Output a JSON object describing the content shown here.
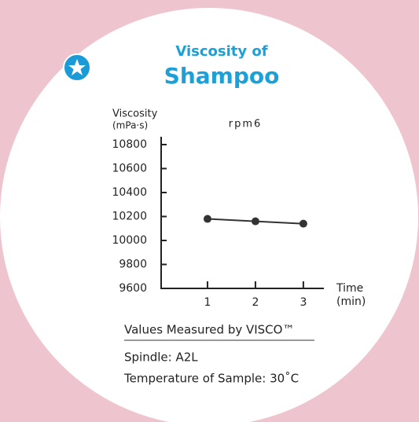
{
  "chart_data": {
    "type": "line",
    "title_lines": [
      "Viscosity of",
      "Shampoo"
    ],
    "subtitle": "rpm6",
    "y_label_lines": [
      "Viscosity",
      "(mPa·s)"
    ],
    "x_label_lines": [
      "Time",
      "(min)"
    ],
    "x": [
      1,
      2,
      3
    ],
    "series": [
      {
        "name": "rpm6",
        "color": "#333333",
        "values": [
          10180,
          10160,
          10140
        ]
      }
    ],
    "xlim": [
      0,
      3.1
    ],
    "xticks": [
      1,
      2,
      3
    ],
    "ylim": [
      9600,
      10800
    ],
    "yticks": [
      9600,
      9800,
      10000,
      10200,
      10400,
      10600,
      10800
    ],
    "annotations": [
      "Values Measured by VISCO™",
      "Spindle: A2L",
      "Temperature of Sample: 30˚C"
    ]
  }
}
